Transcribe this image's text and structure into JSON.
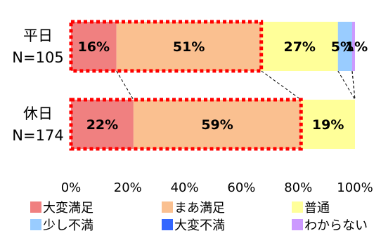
{
  "chart_data": {
    "type": "bar",
    "orientation": "horizontal",
    "stacked": true,
    "percent": true,
    "categories": [
      {
        "name": "平日",
        "n": "N=105"
      },
      {
        "name": "休日",
        "n": "N=174"
      }
    ],
    "series": [
      {
        "name": "大変満足",
        "color": "#f08080",
        "values": [
          16,
          22
        ],
        "labels": [
          "16%",
          "22%"
        ]
      },
      {
        "name": "まあ満足",
        "color": "#fac090",
        "values": [
          51,
          59
        ],
        "labels": [
          "51%",
          "59%"
        ]
      },
      {
        "name": "普通",
        "color": "#ffff99",
        "values": [
          27,
          19
        ],
        "labels": [
          "27%",
          "19%"
        ]
      },
      {
        "name": "少し不満",
        "color": "#99ccff",
        "values": [
          5,
          0
        ],
        "labels": [
          "5%",
          ""
        ]
      },
      {
        "name": "大変不満",
        "color": "#3366ff",
        "values": [
          0,
          0
        ],
        "labels": [
          "",
          ""
        ]
      },
      {
        "name": "わからない",
        "color": "#cc99ff",
        "values": [
          1,
          0
        ],
        "labels": [
          "1%",
          ""
        ]
      }
    ],
    "xlim": [
      0,
      100
    ],
    "xticks": [
      "0%",
      "20%",
      "40%",
      "60%",
      "80%",
      "100%"
    ],
    "highlight": {
      "style": "red dotted box",
      "color": "#ff0000",
      "covers": [
        "大変満足",
        "まあ満足"
      ]
    },
    "connector_lines": "dashed lines between bars at series boundaries",
    "legend": {
      "position": "bottom",
      "columns": 3
    },
    "grid": false
  }
}
